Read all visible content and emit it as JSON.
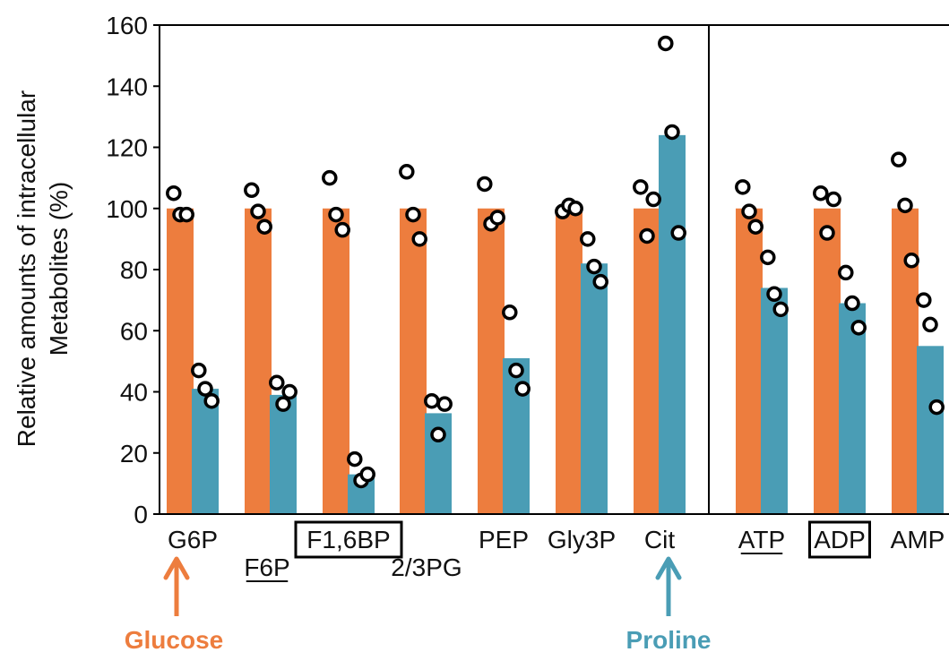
{
  "chart_data": {
    "type": "bar",
    "ylabel": "Relative amounts of intracellular Metabolites (%)",
    "ylabel_lines": [
      "Relative amounts of intracellular",
      "Metabolites (%)"
    ],
    "ylim": [
      0,
      160
    ],
    "yticks": [
      0,
      20,
      40,
      60,
      80,
      100,
      120,
      140,
      160
    ],
    "categories": [
      "G6P",
      "F6P",
      "F1,6BP",
      "2/3PG",
      "PEP",
      "Gly3P",
      "Cit",
      "ATP",
      "ADP",
      "AMP"
    ],
    "label_style": {
      "F6P": "underline",
      "ATP": "underline",
      "F1,6BP": "boxed",
      "ADP": "boxed",
      "2/3PG": "lowered"
    },
    "panels": [
      [
        "G6P",
        "F6P",
        "F1,6BP",
        "2/3PG",
        "PEP",
        "Gly3P",
        "Cit"
      ],
      [
        "ATP",
        "ADP",
        "AMP"
      ]
    ],
    "series": [
      {
        "color": "#ED7D3E",
        "values": [
          100,
          100,
          100,
          100,
          100,
          100,
          100,
          100,
          100,
          100
        ],
        "points": [
          [
            105,
            98,
            98
          ],
          [
            106,
            99,
            94
          ],
          [
            110,
            98,
            93
          ],
          [
            112,
            98,
            90
          ],
          [
            108,
            95,
            97
          ],
          [
            99,
            101,
            100
          ],
          [
            107,
            91,
            103
          ],
          [
            107,
            99,
            94
          ],
          [
            105,
            92,
            103
          ],
          [
            116,
            101,
            83
          ]
        ]
      },
      {
        "color": "#4A9DB5",
        "values": [
          41,
          39,
          13,
          33,
          51,
          82,
          124,
          74,
          69,
          55
        ],
        "points": [
          [
            47,
            41,
            37
          ],
          [
            43,
            36,
            40
          ],
          [
            18,
            11,
            13
          ],
          [
            37,
            26,
            36
          ],
          [
            66,
            47,
            41
          ],
          [
            90,
            81,
            76
          ],
          [
            154,
            125,
            92
          ],
          [
            84,
            72,
            67
          ],
          [
            79,
            69,
            61
          ],
          [
            70,
            62,
            35
          ]
        ]
      }
    ],
    "annotations": [
      {
        "text": "Glucose",
        "points_to": "G6P",
        "color": "#ED7D3E"
      },
      {
        "text": "Proline",
        "points_to": "Cit",
        "color": "#4A9DB5"
      }
    ],
    "grid": false
  }
}
